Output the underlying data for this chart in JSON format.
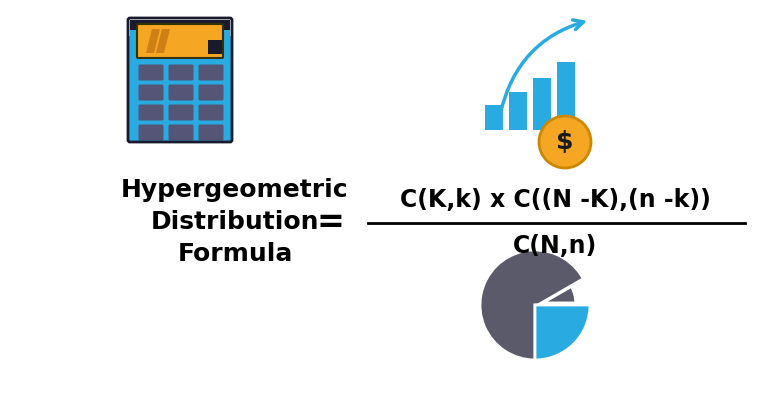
{
  "bg_color": "#ffffff",
  "title_line1": "Hypergeometric",
  "title_line2": "Distribution",
  "title_line3": "Formula",
  "equals": "=",
  "numerator": "C(K,k) x C((N -K),(n -k))",
  "denominator": "C(N,n)",
  "fraction_line_color": "#000000",
  "text_color": "#000000",
  "calc_body_color": "#29abe2",
  "calc_screen_bg": "#f5a623",
  "calc_screen_stripe": "#c07010",
  "calc_screen_border": "#1a1a1a",
  "calc_button_color": "#555577",
  "calc_top_color": "#1a1a2e",
  "bar_color": "#29abe2",
  "arrow_color": "#29abe2",
  "coin_color": "#f5a623",
  "coin_border": "#cc8800",
  "coin_text_color": "#1a1a1a",
  "pie_gray": "#5a5a6a",
  "pie_blue": "#29abe2",
  "pie_outline": "#ffffff",
  "label_fontsize": 18,
  "formula_fontsize": 17,
  "equals_fontsize": 24
}
